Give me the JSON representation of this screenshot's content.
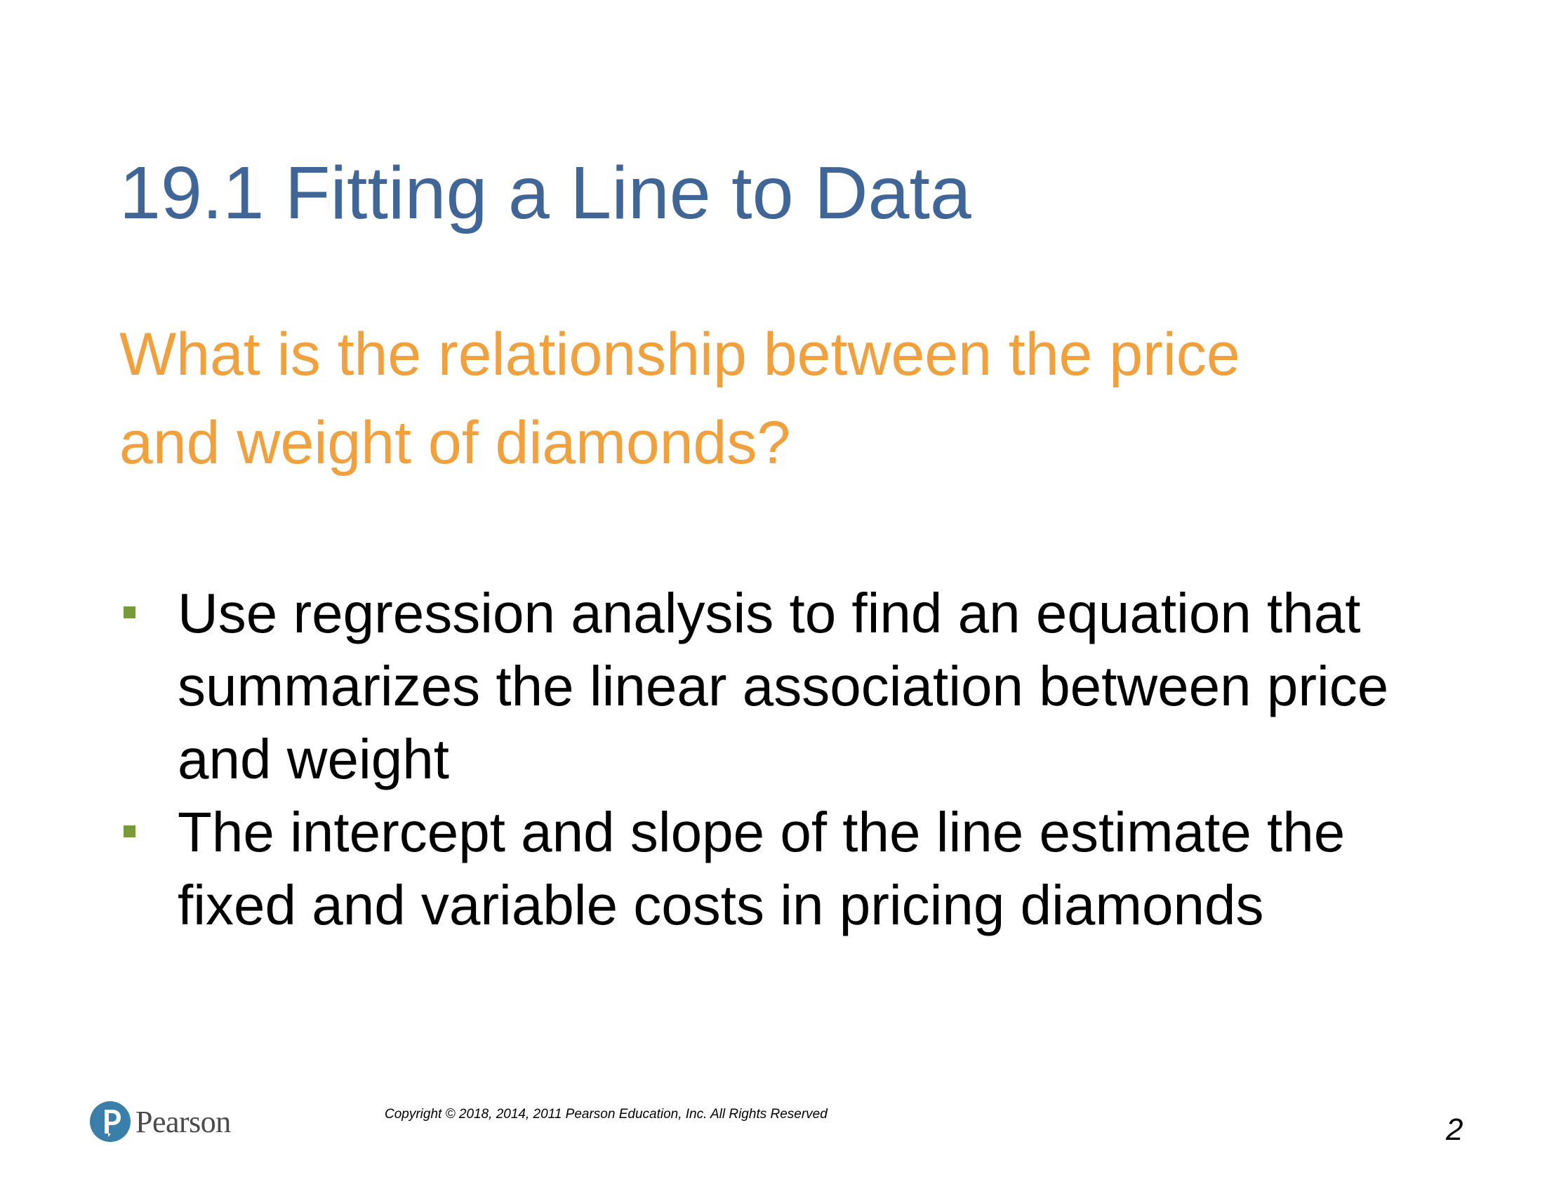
{
  "slide": {
    "title": "19.1 Fitting a Line to Data",
    "subtitle_lines": [
      "What is the relationship between the price",
      "and weight of diamonds?"
    ],
    "bullets": [
      {
        "lines": [
          "Use regression analysis to find an equation that",
          "summarizes the linear association between price",
          "and weight"
        ]
      },
      {
        "lines": [
          "The intercept and slope of the line estimate the",
          "fixed and variable costs in pricing diamonds"
        ]
      }
    ],
    "bullet_color": "#7a9a3a"
  },
  "footer": {
    "logo_text": "Pearson",
    "logo_icon": "pearson-p-logo",
    "copyright": "Copyright © 2018, 2014, 2011 Pearson Education, Inc. All Rights Reserved",
    "page_number": "2"
  },
  "colors": {
    "title": "#3f6696",
    "subtitle": "#f0a03c",
    "body_text": "#000000",
    "logo_circle": "#3a7fa9"
  }
}
